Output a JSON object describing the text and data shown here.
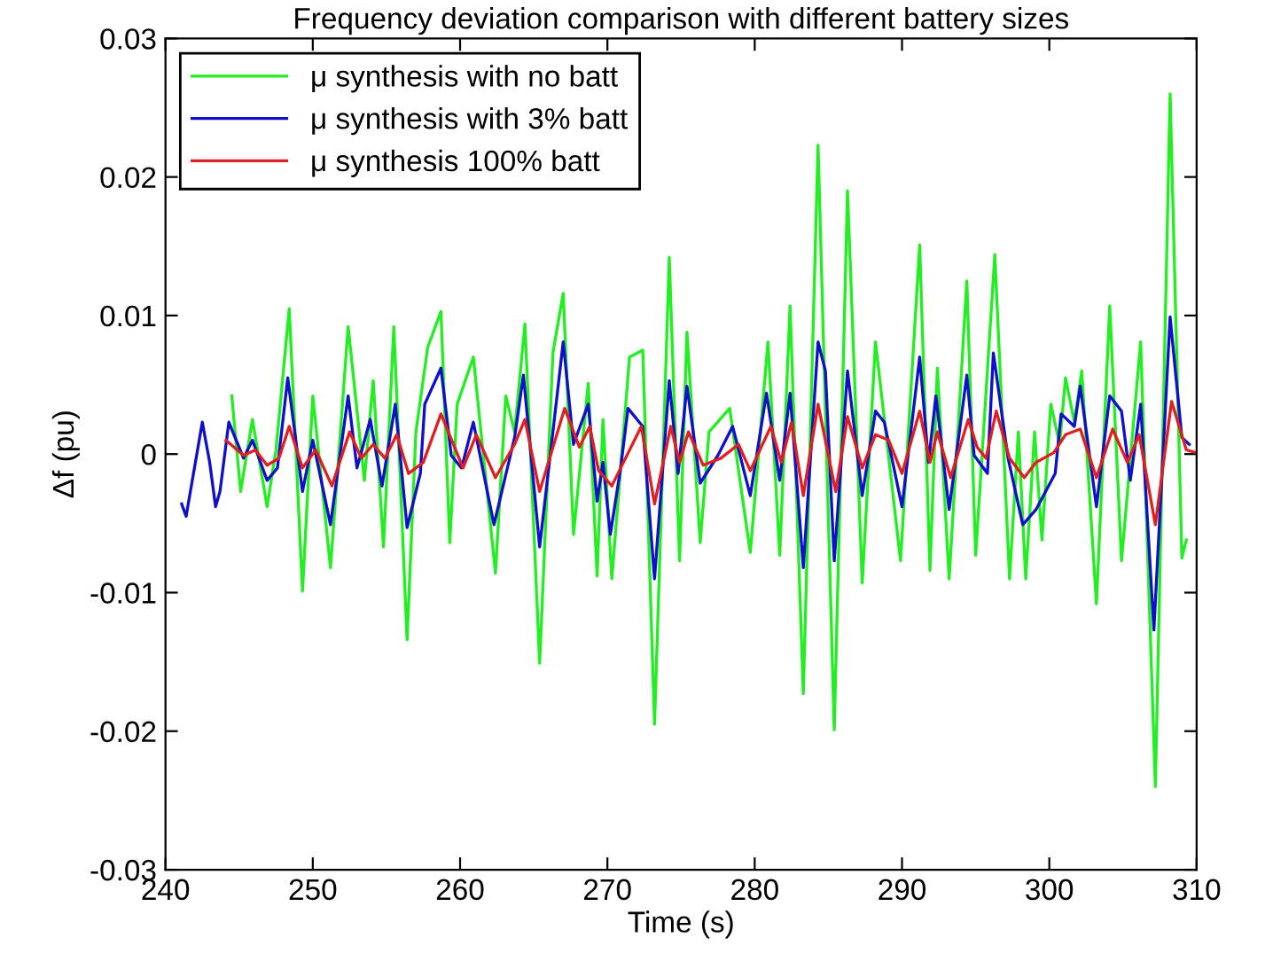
{
  "chart_data": {
    "type": "line",
    "title": "Frequency deviation comparison with different battery sizes",
    "xlabel": "Time (s)",
    "ylabel": "Δf (pu)",
    "xlim": [
      240,
      310
    ],
    "xticks": [
      240,
      250,
      260,
      270,
      280,
      290,
      300,
      310
    ],
    "ylim": [
      -0.03,
      0.03
    ],
    "yticks": [
      -0.03,
      -0.02,
      -0.01,
      0,
      0.01,
      0.02,
      0.03
    ],
    "grid": false,
    "legend": "top left",
    "marker": "none",
    "line_style": "solid",
    "series": [
      {
        "name": "μ synthesis with no batt",
        "color": "#22ee22",
        "x": [
          244.5,
          245.1,
          245.9,
          246.9,
          247.5,
          248.4,
          249.3,
          250.0,
          251.2,
          252.4,
          253.5,
          254.1,
          254.8,
          255.5,
          256.4,
          257.0,
          257.8,
          258.7,
          259.3,
          259.8,
          260.9,
          262.4,
          263.1,
          263.7,
          264.4,
          265.4,
          266.3,
          267.0,
          267.7,
          268.7,
          269.3,
          269.7,
          270.3,
          271.5,
          272.4,
          273.2,
          274.2,
          274.9,
          275.4,
          276.3,
          276.9,
          278.3,
          279.7,
          280.9,
          281.7,
          282.4,
          283.3,
          284.3,
          285.4,
          286.3,
          287.3,
          288.2,
          289.9,
          291.2,
          291.9,
          292.4,
          293.2,
          294.4,
          295.0,
          296.3,
          297.3,
          297.9,
          298.4,
          299.0,
          299.5,
          300.1,
          300.7,
          301.1,
          301.7,
          302.2,
          303.2,
          304.1,
          304.9,
          306.2,
          307.2,
          308.2,
          309.0,
          309.3
        ],
        "values": [
          0.0042,
          -0.0027,
          0.0025,
          -0.0038,
          0.0003,
          0.0105,
          -0.0099,
          0.0042,
          -0.0082,
          0.0092,
          -0.0019,
          0.0053,
          -0.0067,
          0.0092,
          -0.0134,
          0.0016,
          0.0077,
          0.0103,
          -0.0064,
          0.0036,
          0.007,
          -0.0086,
          0.0042,
          0.0016,
          0.0094,
          -0.0151,
          0.0073,
          0.0116,
          -0.0058,
          0.0051,
          -0.0088,
          0.0025,
          -0.009,
          0.007,
          0.0075,
          -0.0195,
          0.0142,
          -0.0077,
          0.0088,
          -0.0064,
          0.0016,
          0.0033,
          -0.0071,
          0.0081,
          -0.0073,
          0.0107,
          -0.0173,
          0.0223,
          -0.0199,
          0.019,
          -0.0093,
          0.0081,
          -0.0077,
          0.0151,
          -0.0084,
          0.0062,
          -0.009,
          0.0125,
          -0.0073,
          0.0144,
          -0.009,
          0.0016,
          -0.009,
          0.0016,
          -0.0062,
          0.0036,
          0.0007,
          0.0055,
          0.0023,
          0.006,
          -0.0108,
          0.0107,
          -0.0077,
          0.0081,
          -0.024,
          0.026,
          -0.0075,
          -0.0062
        ]
      },
      {
        "name": "μ synthesis with 3% batt",
        "color": "#1010cc",
        "x": [
          241.1,
          241.4,
          242.5,
          243.0,
          243.4,
          243.7,
          244.3,
          245.3,
          245.9,
          246.9,
          247.6,
          248.3,
          249.3,
          250.0,
          251.2,
          252.4,
          253.0,
          253.9,
          254.7,
          255.6,
          256.4,
          257.3,
          257.6,
          258.7,
          259.4,
          260.1,
          260.9,
          262.3,
          263.7,
          264.3,
          265.4,
          266.3,
          267.0,
          267.7,
          268.7,
          269.3,
          269.7,
          270.2,
          270.9,
          271.4,
          272.4,
          273.2,
          274.2,
          274.8,
          275.4,
          276.3,
          277.5,
          278.5,
          279.7,
          280.8,
          281.7,
          282.4,
          283.3,
          284.3,
          284.8,
          285.4,
          286.3,
          287.3,
          288.2,
          288.8,
          290.0,
          291.2,
          291.8,
          292.3,
          293.2,
          294.4,
          294.9,
          295.8,
          296.2,
          297.2,
          298.2,
          299.1,
          300.4,
          300.8,
          301.7,
          302.1,
          303.2,
          304.1,
          304.9,
          305.5,
          306.2,
          307.1,
          308.2,
          309.0,
          309.5
        ],
        "values": [
          -0.0036,
          -0.0045,
          0.0023,
          -0.0006,
          -0.0038,
          -0.0027,
          0.0023,
          -0.0003,
          0.001,
          -0.0019,
          -0.001,
          0.0055,
          -0.0027,
          0.001,
          -0.0051,
          0.0042,
          -0.001,
          0.0025,
          -0.0023,
          0.0036,
          -0.0053,
          -0.0014,
          0.0036,
          0.0062,
          -0.0001,
          -0.001,
          0.0023,
          -0.0051,
          0.0012,
          0.0057,
          -0.0067,
          0.0016,
          0.0081,
          0.0007,
          0.0036,
          -0.0034,
          -0.0006,
          -0.0058,
          -0.001,
          0.0033,
          0.002,
          -0.009,
          0.0053,
          -0.0014,
          0.0049,
          -0.0021,
          -0.0001,
          0.002,
          -0.003,
          0.0044,
          -0.0019,
          0.0044,
          -0.0082,
          0.0081,
          0.006,
          -0.0077,
          0.006,
          -0.003,
          0.0031,
          0.0023,
          -0.0038,
          0.007,
          -0.0006,
          0.0042,
          -0.004,
          0.0057,
          -0.0001,
          -0.0014,
          0.0073,
          -0.0003,
          -0.0051,
          -0.004,
          -0.0014,
          0.0029,
          0.002,
          0.0049,
          -0.0038,
          0.0042,
          0.0031,
          -0.0019,
          0.0036,
          -0.0127,
          0.0099,
          0.0012,
          0.0007
        ]
      },
      {
        "name": "μ synthesis 100% batt",
        "color": "#e02020",
        "x": [
          244.1,
          245.3,
          246.1,
          246.9,
          247.7,
          248.4,
          249.3,
          250.2,
          251.3,
          252.5,
          253.3,
          254.1,
          254.9,
          255.7,
          256.5,
          257.5,
          258.7,
          260.2,
          261.1,
          262.4,
          263.7,
          264.4,
          265.4,
          267.1,
          268.1,
          268.8,
          269.4,
          270.3,
          272.3,
          273.2,
          274.3,
          274.9,
          275.5,
          276.5,
          277.7,
          278.9,
          279.7,
          281.1,
          281.8,
          282.5,
          283.3,
          284.3,
          285.5,
          286.3,
          287.3,
          288.2,
          289.1,
          290.0,
          291.2,
          291.9,
          292.4,
          293.3,
          294.5,
          295.1,
          295.7,
          296.4,
          297.3,
          298.3,
          299.1,
          300.3,
          301.1,
          302.1,
          303.2,
          304.3,
          305.3,
          306.1,
          307.2,
          308.3,
          309.3,
          310.0
        ],
        "values": [
          0.001,
          -0.0001,
          0.0003,
          -0.0008,
          -0.0003,
          0.002,
          -0.001,
          0.0003,
          -0.0023,
          0.0016,
          -0.0003,
          0.0007,
          -0.0003,
          0.0014,
          -0.0014,
          -0.0006,
          0.0029,
          -0.001,
          0.0014,
          -0.0017,
          0.0007,
          0.0025,
          -0.0027,
          0.0033,
          0.0005,
          0.002,
          -0.0012,
          -0.0023,
          0.002,
          -0.0036,
          0.002,
          -0.0006,
          0.0016,
          -0.0008,
          -0.0003,
          0.0007,
          -0.0012,
          0.002,
          -0.0006,
          0.0023,
          -0.003,
          0.0036,
          -0.0027,
          0.0027,
          -0.001,
          0.0014,
          0.001,
          -0.0014,
          0.0031,
          -0.0006,
          0.0016,
          -0.0017,
          0.0025,
          0.0005,
          -0.0003,
          0.0031,
          -0.0003,
          -0.0017,
          -0.0006,
          0.0001,
          0.0014,
          0.0018,
          -0.0017,
          0.0018,
          -0.0006,
          0.0014,
          -0.0051,
          0.0038,
          0.0003,
          0.0001
        ]
      }
    ]
  }
}
